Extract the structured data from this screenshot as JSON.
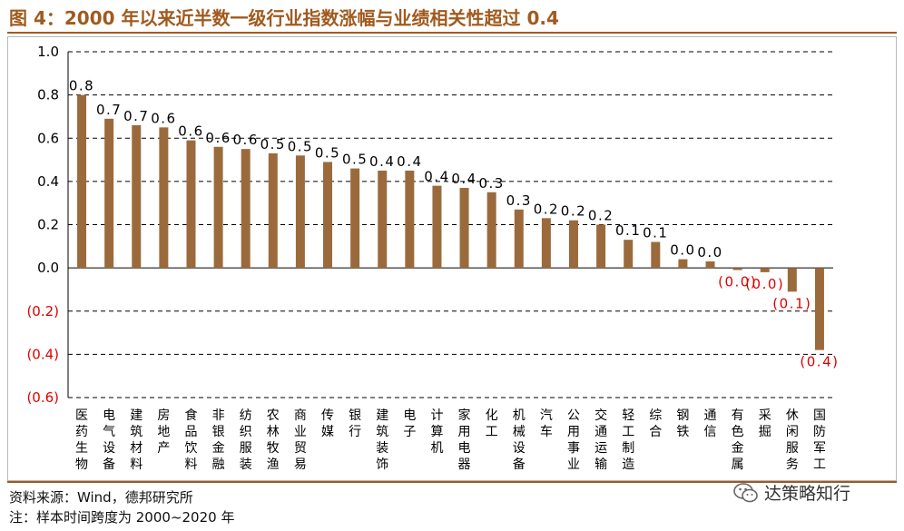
{
  "header": {
    "title": "图 4：2000 年以来近半数一级行业指数涨幅与业绩相关性超过 0.4"
  },
  "footer": {
    "source": "资料来源：Wind，德邦研究所",
    "note": "注：样本时间跨度为 2000~2020 年",
    "brand": "达策略知行"
  },
  "colors": {
    "bar": "#9b6a3c",
    "negative_label": "#e00000",
    "grid": "#000000",
    "accent": "#a05a1e"
  },
  "chart_data": {
    "type": "bar",
    "title": "",
    "xlabel": "",
    "ylabel": "",
    "ylim": [
      -0.6,
      1.0
    ],
    "yticks": [
      1.0,
      0.8,
      0.6,
      0.4,
      0.2,
      0.0,
      -0.2,
      -0.4,
      -0.6
    ],
    "ytick_labels": [
      "1.0",
      "0.8",
      "0.6",
      "0.4",
      "0.2",
      "0.0",
      "(0.2)",
      "(0.4)",
      "(0.6)"
    ],
    "grid": "horizontal dashed",
    "categories": [
      "医药生物",
      "电气设备",
      "建筑材料",
      "房地产",
      "食品饮料",
      "非银金融",
      "纺织服装",
      "农林牧渔",
      "商业贸易",
      "传媒",
      "银行",
      "建筑装饰",
      "电子",
      "计算机",
      "家用电器",
      "化工",
      "机械设备",
      "汽车",
      "公用事业",
      "交通运输",
      "轻工制造",
      "综合",
      "钢铁",
      "通信",
      "有色金属",
      "采掘",
      "休闲服务",
      "国防军工"
    ],
    "values": [
      0.8,
      0.69,
      0.66,
      0.65,
      0.59,
      0.56,
      0.55,
      0.53,
      0.52,
      0.49,
      0.46,
      0.45,
      0.45,
      0.38,
      0.37,
      0.35,
      0.27,
      0.23,
      0.22,
      0.2,
      0.13,
      0.12,
      0.04,
      0.03,
      -0.01,
      -0.02,
      -0.11,
      -0.38
    ],
    "data_labels": [
      "0.8",
      "0.7",
      "0.7",
      "0.6",
      "0.6",
      "0.6",
      "0.6",
      "0.5",
      "0.5",
      "0.5",
      "0.5",
      "0.4",
      "0.4",
      "0.4",
      "0.4",
      "0.3",
      "0.3",
      "0.2",
      "0.2",
      "0.2",
      "0.1",
      "0.1",
      "0.0",
      "0.0",
      "(0.0)",
      "(0.0)",
      "(0.1)",
      "(0.4)"
    ]
  }
}
